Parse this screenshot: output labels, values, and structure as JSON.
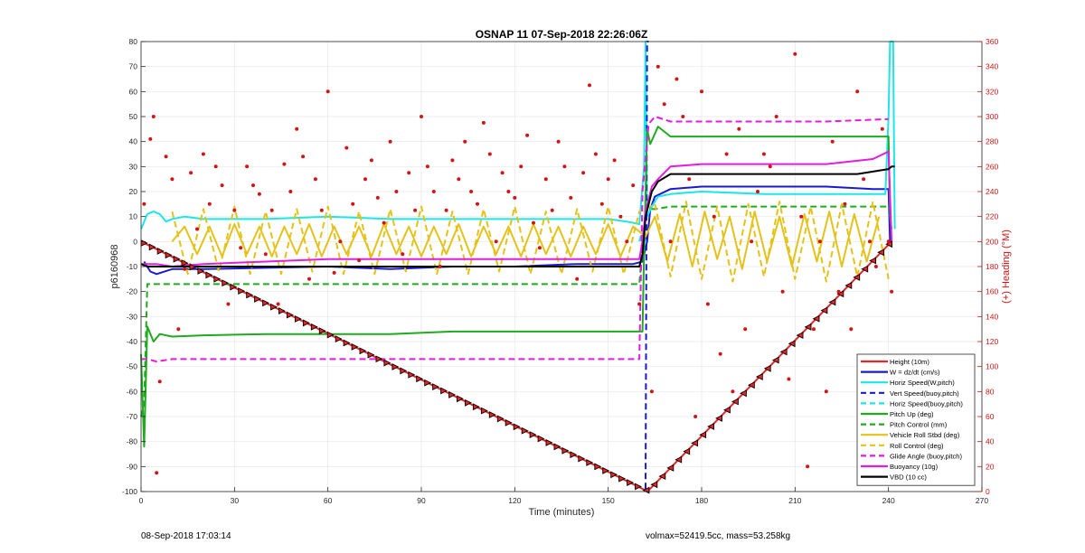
{
  "chart_data": {
    "type": "line",
    "title": "OSNAP 11 07-Sep-2018 22:26:06Z",
    "xlabel": "Time (minutes)",
    "ylabel": "p6160968",
    "y2label": "(+) Heading (°M)",
    "xlim": [
      0,
      270
    ],
    "ylim": [
      -100,
      80
    ],
    "y2lim": [
      0,
      360
    ],
    "xticks": [
      "0",
      "30",
      "60",
      "90",
      "120",
      "150",
      "180",
      "210",
      "240",
      "270"
    ],
    "yticks": [
      "-100",
      "-90",
      "-80",
      "-70",
      "-60",
      "-50",
      "-40",
      "-30",
      "-20",
      "-10",
      "0",
      "10",
      "20",
      "30",
      "40",
      "50",
      "60",
      "70",
      "80"
    ],
    "y2ticks": [
      "0",
      "20",
      "40",
      "60",
      "80",
      "100",
      "120",
      "140",
      "160",
      "180",
      "200",
      "220",
      "240",
      "260",
      "280",
      "300",
      "320",
      "340",
      "360"
    ],
    "legend_position": "bottom-right",
    "series": [
      {
        "name": "Height (10m)",
        "color": "#e8262a",
        "dash": "solid",
        "x": [
          0,
          162,
          163,
          241
        ],
        "y": [
          0,
          -99.5,
          -99.5,
          0
        ]
      },
      {
        "name": "W = dz/dt (cm/s)",
        "color": "#1a1acd",
        "dash": "solid",
        "x": [
          1,
          3,
          5,
          10,
          20,
          40,
          60,
          80,
          100,
          120,
          140,
          158,
          161,
          162.5,
          163.5,
          165,
          170,
          180,
          200,
          220,
          235,
          240,
          240.5
        ],
        "y": [
          -8,
          -12,
          -13,
          -11,
          -11,
          -10.5,
          -10,
          -11,
          -10,
          -10,
          -9,
          -9,
          -8,
          0,
          13,
          18,
          21,
          22,
          22,
          22,
          21,
          21,
          0
        ]
      },
      {
        "name": "Horiz Speed(W,pitch)",
        "color": "#1ee6e6",
        "dash": "solid",
        "x": [
          0,
          2,
          4,
          6,
          8,
          10,
          14,
          20,
          40,
          60,
          80,
          100,
          120,
          140,
          150,
          156,
          160,
          161.5,
          162,
          162.5,
          164,
          166,
          170,
          180,
          200,
          220,
          235,
          239,
          240,
          240.5,
          241.5,
          242
        ],
        "y": [
          5,
          11,
          12,
          11,
          8,
          9,
          10,
          9,
          9,
          10,
          9,
          9,
          9,
          9,
          9,
          8,
          7,
          30,
          80,
          10,
          14,
          18,
          19,
          20,
          19,
          19,
          19,
          19,
          50,
          80,
          80,
          5
        ]
      },
      {
        "name": "Vert Speed(buoy,pitch)",
        "color": "#1a1acd",
        "dash": "dashed",
        "x": [
          162,
          162.5,
          163
        ],
        "y": [
          -99,
          80,
          80
        ]
      },
      {
        "name": "Horiz Speed(buoy,pitch)",
        "color": "#1ee6e6",
        "dash": "dashed",
        "x": [
          160,
          161,
          162
        ],
        "y": [
          0,
          5,
          0
        ]
      },
      {
        "name": "Pitch Up (deg)",
        "color": "#1faa1f",
        "dash": "solid",
        "x": [
          0,
          1,
          2,
          4,
          6,
          10,
          20,
          40,
          60,
          80,
          100,
          120,
          140,
          160,
          161,
          161.5,
          162.5,
          163.5,
          166,
          170,
          180,
          200,
          220,
          235,
          240,
          240.5,
          241
        ],
        "y": [
          -45,
          -82,
          -34,
          -40,
          -37,
          -38,
          -37.5,
          -37,
          -37,
          -37,
          -36,
          -36,
          -36,
          -36,
          -36,
          -5,
          45,
          39,
          46,
          42,
          42,
          42,
          42,
          42,
          42,
          10,
          5
        ]
      },
      {
        "name": "Pitch Control (mm)",
        "color": "#1faa1f",
        "dash": "dashed",
        "x": [
          0,
          1,
          2,
          5,
          160,
          162,
          165,
          170,
          180,
          200,
          220,
          240
        ],
        "y": [
          -70,
          -65,
          -17,
          -17,
          -17,
          13,
          13,
          14,
          14,
          14,
          14,
          14
        ]
      },
      {
        "name": "Vehicle Roll Stbd (deg)",
        "color": "#e4c21a",
        "dash": "solid",
        "x": [
          10,
          14,
          18,
          22,
          26,
          30,
          34,
          38,
          42,
          46,
          50,
          54,
          58,
          62,
          66,
          70,
          74,
          78,
          82,
          86,
          90,
          94,
          98,
          102,
          106,
          110,
          114,
          118,
          122,
          126,
          130,
          134,
          138,
          142,
          146,
          150,
          154,
          158,
          162,
          165,
          169,
          173,
          177,
          181,
          185,
          189,
          193,
          197,
          201,
          205,
          209,
          213,
          217,
          221,
          225,
          229,
          233,
          237
        ],
        "y": [
          0,
          6,
          -5,
          6,
          -6,
          7,
          -5,
          6,
          -6,
          6,
          -5,
          7,
          -6,
          6,
          -5,
          6,
          -6,
          7,
          -5,
          6,
          -6,
          6,
          -5,
          7,
          -6,
          6,
          -5,
          6,
          -6,
          7,
          -5,
          6,
          -6,
          6,
          -5,
          7,
          -6,
          6,
          2,
          10,
          -8,
          11,
          -10,
          12,
          -7,
          10,
          -11,
          12,
          -8,
          10,
          -10,
          11,
          -8,
          12,
          -10,
          11,
          -8,
          10
        ]
      },
      {
        "name": "Roll Control (deg)",
        "color": "#e4c21a",
        "dash": "dashed",
        "x": [
          10,
          15,
          20,
          25,
          30,
          35,
          40,
          45,
          50,
          55,
          60,
          65,
          70,
          75,
          80,
          85,
          90,
          95,
          100,
          105,
          110,
          115,
          120,
          125,
          130,
          135,
          140,
          145,
          150,
          155,
          160,
          165,
          170,
          175,
          180,
          185,
          190,
          195,
          200,
          205,
          210,
          215,
          220,
          225,
          230,
          235,
          240
        ],
        "y": [
          12,
          -13,
          13,
          -12,
          14,
          -13,
          12,
          -13,
          13,
          -12,
          14,
          -13,
          12,
          -13,
          13,
          -12,
          14,
          -13,
          12,
          -13,
          13,
          -12,
          14,
          -13,
          12,
          -13,
          13,
          -12,
          14,
          -13,
          12,
          15,
          -14,
          16,
          -15,
          14,
          -16,
          15,
          -14,
          16,
          -15,
          14,
          -16,
          15,
          -14,
          16,
          -15
        ]
      },
      {
        "name": "Glide Angle (buoy,pitch)",
        "color": "#e01ee0",
        "dash": "dashed",
        "x": [
          0,
          2,
          5,
          10,
          20,
          40,
          60,
          80,
          100,
          120,
          140,
          160,
          161,
          163,
          165,
          170,
          180,
          200,
          220,
          240
        ],
        "y": [
          -47,
          -47,
          -48,
          -47,
          -47,
          -47,
          -47,
          -47,
          -47,
          -47,
          -47,
          -47,
          20,
          47,
          50,
          48,
          48,
          48,
          48,
          49
        ]
      },
      {
        "name": "Buoyancy (10g)",
        "color": "#e01ee0",
        "dash": "solid",
        "x": [
          0,
          2,
          5,
          10,
          20,
          40,
          60,
          80,
          100,
          120,
          140,
          158,
          160,
          161,
          162,
          164,
          166,
          170,
          180,
          200,
          220,
          235,
          240,
          241
        ],
        "y": [
          -9,
          -9,
          -9,
          -10,
          -9,
          -8,
          -7,
          -7,
          -7,
          -7,
          -7,
          -7,
          -7,
          0,
          12,
          22,
          25,
          30,
          31,
          31,
          31,
          33,
          36,
          0
        ]
      },
      {
        "name": "VBD (10 cc)",
        "color": "#000000",
        "dash": "solid",
        "x": [
          0,
          2,
          5,
          10,
          40,
          80,
          120,
          158,
          160,
          161,
          162,
          164,
          166,
          170,
          180,
          200,
          220,
          230,
          235,
          240,
          241,
          242
        ],
        "y": [
          -9,
          -10,
          -10,
          -10,
          -10,
          -10,
          -10,
          -10,
          -10,
          -5,
          10,
          20,
          24,
          27,
          27,
          27,
          27,
          27,
          28,
          29,
          30,
          30
        ]
      }
    ],
    "heading_points": {
      "name": "Heading",
      "color": "#d21414",
      "axis": "right",
      "x": [
        1,
        3,
        4,
        5,
        6,
        8,
        10,
        12,
        14,
        16,
        18,
        20,
        22,
        24,
        26,
        28,
        30,
        32,
        34,
        36,
        38,
        40,
        42,
        44,
        46,
        48,
        50,
        52,
        54,
        56,
        58,
        60,
        62,
        64,
        66,
        68,
        70,
        72,
        74,
        76,
        78,
        80,
        82,
        84,
        86,
        88,
        90,
        92,
        94,
        96,
        98,
        100,
        102,
        104,
        106,
        108,
        110,
        112,
        114,
        116,
        118,
        120,
        122,
        124,
        126,
        128,
        130,
        132,
        134,
        136,
        138,
        140,
        142,
        144,
        146,
        148,
        150,
        152,
        154,
        156,
        158,
        160,
        164,
        166,
        168,
        170,
        172,
        174,
        176,
        178,
        180,
        182,
        184,
        186,
        188,
        190,
        192,
        194,
        196,
        198,
        200,
        202,
        204,
        206,
        208,
        210,
        212,
        214,
        216,
        218,
        220,
        222,
        224,
        226,
        228,
        230,
        232,
        234,
        236,
        238,
        240,
        241
      ],
      "y": [
        230,
        282,
        300,
        15,
        88,
        268,
        250,
        130,
        178,
        255,
        210,
        270,
        230,
        260,
        245,
        150,
        225,
        195,
        260,
        245,
        238,
        190,
        225,
        150,
        262,
        240,
        290,
        268,
        170,
        250,
        225,
        320,
        175,
        200,
        275,
        230,
        185,
        250,
        265,
        235,
        215,
        280,
        240,
        190,
        255,
        225,
        300,
        260,
        240,
        180,
        225,
        265,
        250,
        280,
        240,
        230,
        295,
        270,
        200,
        255,
        240,
        235,
        260,
        285,
        215,
        195,
        250,
        225,
        280,
        260,
        235,
        170,
        255,
        325,
        270,
        230,
        250,
        265,
        220,
        200,
        245,
        150,
        80,
        340,
        310,
        200,
        330,
        300,
        250,
        60,
        320,
        150,
        220,
        110,
        270,
        80,
        290,
        130,
        200,
        240,
        270,
        260,
        300,
        160,
        90,
        350,
        220,
        20,
        130,
        200,
        80,
        280,
        160,
        230,
        130,
        320,
        250,
        200,
        180,
        290,
        200,
        160
      ]
    }
  },
  "footer": {
    "timestamp": "08-Sep-2018 17:03:14",
    "params": "volmax=52419.5cc, mass=53.258kg"
  }
}
